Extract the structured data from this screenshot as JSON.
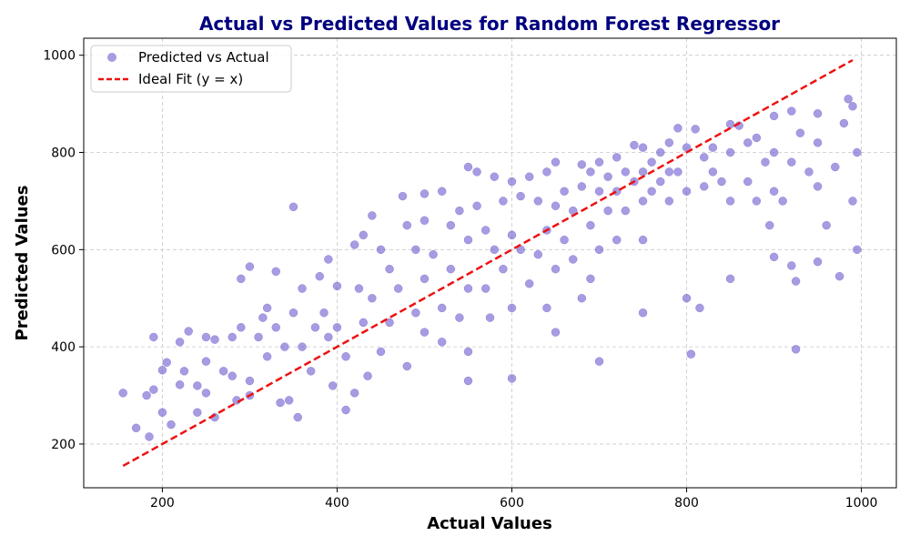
{
  "chart_data": {
    "type": "scatter",
    "title": "Actual vs Predicted Values for Random Forest Regressor",
    "xlabel": "Actual Values",
    "ylabel": "Predicted Values",
    "xlim": [
      110,
      1040
    ],
    "ylim": [
      110,
      1035
    ],
    "xticks": [
      200,
      400,
      600,
      800,
      1000
    ],
    "yticks": [
      200,
      400,
      600,
      800,
      1000
    ],
    "grid": true,
    "legend_position": "top-left",
    "colors": {
      "scatter": "#6a5acd",
      "ideal": "#ee1111",
      "title": "#00007f"
    },
    "series": [
      {
        "name": "Predicted vs Actual",
        "kind": "scatter",
        "points": [
          [
            155,
            305
          ],
          [
            170,
            233
          ],
          [
            182,
            300
          ],
          [
            185,
            215
          ],
          [
            190,
            420
          ],
          [
            190,
            312
          ],
          [
            200,
            265
          ],
          [
            200,
            352
          ],
          [
            205,
            368
          ],
          [
            210,
            240
          ],
          [
            220,
            410
          ],
          [
            220,
            322
          ],
          [
            225,
            350
          ],
          [
            230,
            432
          ],
          [
            240,
            265
          ],
          [
            240,
            320
          ],
          [
            250,
            420
          ],
          [
            250,
            370
          ],
          [
            250,
            305
          ],
          [
            260,
            255
          ],
          [
            260,
            415
          ],
          [
            270,
            350
          ],
          [
            280,
            420
          ],
          [
            280,
            340
          ],
          [
            285,
            290
          ],
          [
            290,
            540
          ],
          [
            290,
            440
          ],
          [
            300,
            565
          ],
          [
            300,
            330
          ],
          [
            300,
            300
          ],
          [
            310,
            420
          ],
          [
            315,
            460
          ],
          [
            320,
            480
          ],
          [
            320,
            380
          ],
          [
            330,
            555
          ],
          [
            330,
            440
          ],
          [
            335,
            285
          ],
          [
            340,
            400
          ],
          [
            345,
            290
          ],
          [
            350,
            688
          ],
          [
            350,
            470
          ],
          [
            355,
            255
          ],
          [
            360,
            400
          ],
          [
            360,
            520
          ],
          [
            370,
            350
          ],
          [
            375,
            440
          ],
          [
            380,
            545
          ],
          [
            385,
            470
          ],
          [
            390,
            580
          ],
          [
            390,
            420
          ],
          [
            395,
            320
          ],
          [
            400,
            525
          ],
          [
            400,
            440
          ],
          [
            410,
            270
          ],
          [
            410,
            380
          ],
          [
            420,
            610
          ],
          [
            420,
            305
          ],
          [
            425,
            520
          ],
          [
            430,
            630
          ],
          [
            430,
            450
          ],
          [
            435,
            340
          ],
          [
            440,
            670
          ],
          [
            440,
            500
          ],
          [
            450,
            600
          ],
          [
            450,
            390
          ],
          [
            460,
            560
          ],
          [
            460,
            450
          ],
          [
            470,
            520
          ],
          [
            475,
            710
          ],
          [
            480,
            650
          ],
          [
            480,
            360
          ],
          [
            490,
            600
          ],
          [
            490,
            470
          ],
          [
            500,
            715
          ],
          [
            500,
            660
          ],
          [
            500,
            540
          ],
          [
            500,
            430
          ],
          [
            510,
            590
          ],
          [
            520,
            720
          ],
          [
            520,
            480
          ],
          [
            520,
            410
          ],
          [
            530,
            650
          ],
          [
            530,
            560
          ],
          [
            540,
            680
          ],
          [
            540,
            460
          ],
          [
            550,
            770
          ],
          [
            550,
            620
          ],
          [
            550,
            520
          ],
          [
            550,
            390
          ],
          [
            550,
            330
          ],
          [
            560,
            760
          ],
          [
            560,
            690
          ],
          [
            570,
            640
          ],
          [
            570,
            520
          ],
          [
            575,
            460
          ],
          [
            580,
            750
          ],
          [
            580,
            600
          ],
          [
            590,
            700
          ],
          [
            590,
            560
          ],
          [
            600,
            740
          ],
          [
            600,
            630
          ],
          [
            600,
            480
          ],
          [
            600,
            335
          ],
          [
            610,
            710
          ],
          [
            610,
            600
          ],
          [
            620,
            750
          ],
          [
            620,
            530
          ],
          [
            630,
            700
          ],
          [
            630,
            590
          ],
          [
            640,
            760
          ],
          [
            640,
            640
          ],
          [
            640,
            480
          ],
          [
            650,
            780
          ],
          [
            650,
            690
          ],
          [
            650,
            560
          ],
          [
            650,
            430
          ],
          [
            660,
            720
          ],
          [
            660,
            620
          ],
          [
            670,
            680
          ],
          [
            670,
            580
          ],
          [
            680,
            775
          ],
          [
            680,
            730
          ],
          [
            680,
            500
          ],
          [
            690,
            760
          ],
          [
            690,
            650
          ],
          [
            690,
            540
          ],
          [
            700,
            780
          ],
          [
            700,
            720
          ],
          [
            700,
            600
          ],
          [
            700,
            370
          ],
          [
            710,
            750
          ],
          [
            710,
            680
          ],
          [
            720,
            790
          ],
          [
            720,
            720
          ],
          [
            720,
            620
          ],
          [
            730,
            760
          ],
          [
            730,
            680
          ],
          [
            740,
            815
          ],
          [
            740,
            740
          ],
          [
            750,
            810
          ],
          [
            750,
            760
          ],
          [
            750,
            700
          ],
          [
            750,
            620
          ],
          [
            750,
            470
          ],
          [
            760,
            780
          ],
          [
            760,
            720
          ],
          [
            770,
            800
          ],
          [
            770,
            740
          ],
          [
            780,
            820
          ],
          [
            780,
            760
          ],
          [
            780,
            700
          ],
          [
            790,
            850
          ],
          [
            790,
            760
          ],
          [
            800,
            810
          ],
          [
            800,
            720
          ],
          [
            800,
            500
          ],
          [
            805,
            385
          ],
          [
            810,
            848
          ],
          [
            815,
            480
          ],
          [
            820,
            790
          ],
          [
            820,
            730
          ],
          [
            830,
            810
          ],
          [
            830,
            760
          ],
          [
            840,
            740
          ],
          [
            850,
            858
          ],
          [
            850,
            800
          ],
          [
            850,
            700
          ],
          [
            850,
            540
          ],
          [
            860,
            855
          ],
          [
            870,
            820
          ],
          [
            870,
            740
          ],
          [
            880,
            830
          ],
          [
            880,
            700
          ],
          [
            890,
            780
          ],
          [
            895,
            650
          ],
          [
            900,
            875
          ],
          [
            900,
            800
          ],
          [
            900,
            720
          ],
          [
            900,
            585
          ],
          [
            910,
            700
          ],
          [
            920,
            885
          ],
          [
            920,
            780
          ],
          [
            920,
            567
          ],
          [
            925,
            535
          ],
          [
            925,
            395
          ],
          [
            930,
            840
          ],
          [
            940,
            760
          ],
          [
            950,
            880
          ],
          [
            950,
            820
          ],
          [
            950,
            730
          ],
          [
            950,
            575
          ],
          [
            960,
            650
          ],
          [
            970,
            770
          ],
          [
            975,
            545
          ],
          [
            980,
            860
          ],
          [
            985,
            910
          ],
          [
            990,
            895
          ],
          [
            990,
            700
          ],
          [
            995,
            800
          ],
          [
            995,
            600
          ]
        ]
      },
      {
        "name": "Ideal Fit (y = x)",
        "kind": "line",
        "x": [
          155,
          990
        ],
        "y": [
          155,
          990
        ]
      }
    ]
  }
}
